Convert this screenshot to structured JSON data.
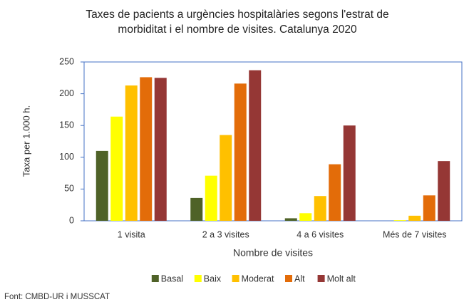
{
  "chart_data": {
    "type": "bar",
    "title": "Taxes de pacients a urgències hospitalàries segons l'estrat de morbiditat i el nombre de visites. Catalunya 2020",
    "x_label": "Nombre de visites",
    "y_label": "Taxa per 1.000 h.",
    "source": "Font: CMBD-UR i MUSSCAT",
    "categories": [
      "1 visita",
      "2 a 3 visites",
      "4 a 6 visites",
      "Més de 7 visites"
    ],
    "series": [
      {
        "name": "Basal",
        "color": "#4f6228",
        "values": [
          110,
          36,
          4,
          0
        ]
      },
      {
        "name": "Baix",
        "color": "#ffff00",
        "values": [
          164,
          71,
          12,
          1
        ]
      },
      {
        "name": "Moderat",
        "color": "#ffc000",
        "values": [
          213,
          135,
          39,
          8
        ]
      },
      {
        "name": "Alt",
        "color": "#e36c09",
        "values": [
          226,
          216,
          89,
          40
        ]
      },
      {
        "name": "Molt alt",
        "color": "#953735",
        "values": [
          225,
          237,
          150,
          94
        ]
      }
    ],
    "ylim": [
      0,
      250
    ],
    "yticks": [
      0,
      50,
      100,
      150,
      200,
      250
    ],
    "grid": false,
    "legend": "bottom"
  }
}
